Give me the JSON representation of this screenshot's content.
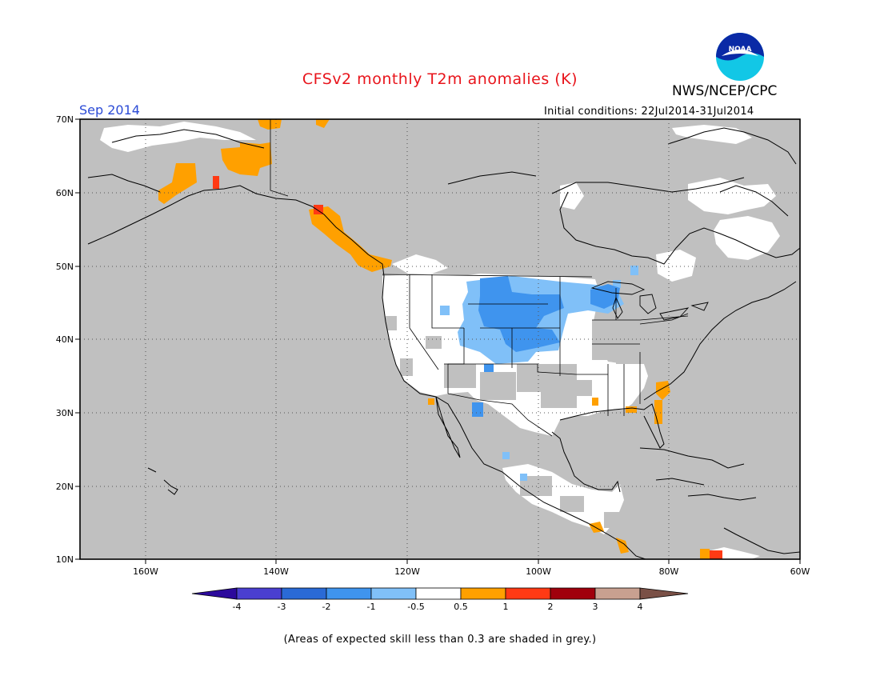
{
  "header": {
    "title": "CFSv2 monthly T2m anomalies (K)",
    "agency": "NWS/NCEP/CPC",
    "logo_text": "NOAA",
    "valid_month": "Sep 2014",
    "initial_conditions": "Initial conditions: 22Jul2014-31Jul2014"
  },
  "map": {
    "lat_labels": [
      "70N",
      "60N",
      "50N",
      "40N",
      "30N",
      "20N",
      "10N"
    ],
    "lon_labels": [
      "160W",
      "140W",
      "120W",
      "100W",
      "80W",
      "60W"
    ],
    "extent": {
      "lon": [
        -170,
        -60
      ],
      "lat": [
        10,
        70
      ]
    },
    "grid": "dotted",
    "ocean_fill": "low-skill grey"
  },
  "colorbar": {
    "ticks": [
      "-4",
      "-3",
      "-2",
      "-1",
      "-0.5",
      "0.5",
      "1",
      "2",
      "3",
      "4"
    ],
    "colors": [
      "#2c0a9c",
      "#4a3fd0",
      "#2a6ad6",
      "#3f94ee",
      "#80c0f8",
      "#ffffff",
      "#ffa000",
      "#ff3a14",
      "#a0000c",
      "#c8a090",
      "#7a5046"
    ]
  },
  "colors": {
    "grey_mask": "#c0c0c0",
    "title_red": "#e8141b",
    "month_blue": "#2b4bd6"
  },
  "footnote": "(Areas of expected skill less than 0.3 are shaded in grey.)"
}
